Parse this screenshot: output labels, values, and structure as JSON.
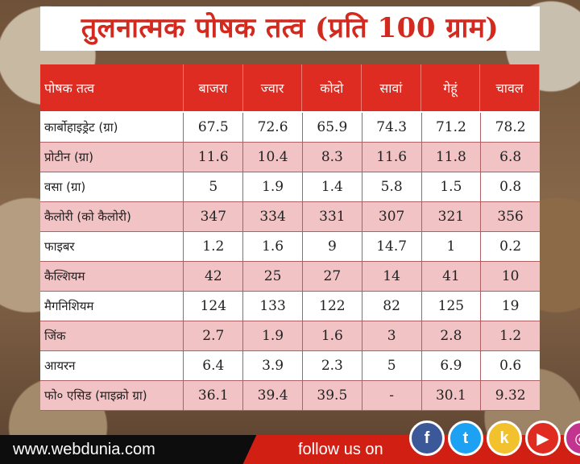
{
  "title": "तुलनात्मक पोषक तत्व (प्रति 100 ग्राम)",
  "table": {
    "headers": [
      "पोषक तत्व",
      "बाजरा",
      "ज्वार",
      "कोदो",
      "सावां",
      "गेहूं",
      "चावल"
    ],
    "rows": [
      {
        "name": "कार्बोहाइड्रेट (ग्रा)",
        "values": [
          "67.5",
          "72.6",
          "65.9",
          "74.3",
          "71.2",
          "78.2"
        ]
      },
      {
        "name": "प्रोटीन (ग्रा)",
        "values": [
          "11.6",
          "10.4",
          "8.3",
          "11.6",
          "11.8",
          "6.8"
        ]
      },
      {
        "name": "वसा (ग्रा)",
        "values": [
          "5",
          "1.9",
          "1.4",
          "5.8",
          "1.5",
          "0.8"
        ]
      },
      {
        "name": "कैलोरी (को कैलोरी)",
        "values": [
          "347",
          "334",
          "331",
          "307",
          "321",
          "356"
        ]
      },
      {
        "name": "फाइबर",
        "values": [
          "1.2",
          "1.6",
          "9",
          "14.7",
          "1",
          "0.2"
        ]
      },
      {
        "name": "कैल्शियम",
        "values": [
          "42",
          "25",
          "27",
          "14",
          "41",
          "10"
        ]
      },
      {
        "name": "मैगनिशियम",
        "values": [
          "124",
          "133",
          "122",
          "82",
          "125",
          "19"
        ]
      },
      {
        "name": "जिंक",
        "values": [
          "2.7",
          "1.9",
          "1.6",
          "3",
          "2.8",
          "1.2"
        ]
      },
      {
        "name": "आयरन",
        "values": [
          "6.4",
          "3.9",
          "2.3",
          "5",
          "6.9",
          "0.6"
        ]
      },
      {
        "name": "फो० एसिड (माइक्रो ग्रा)",
        "values": [
          "36.1",
          "39.4",
          "39.5",
          "-",
          "30.1",
          "9.32"
        ]
      }
    ]
  },
  "footer": {
    "site": "www.webdunia.com",
    "follow": "follow us on",
    "icons": [
      {
        "name": "facebook-icon",
        "glyph": "f",
        "color": "#3b5998"
      },
      {
        "name": "twitter-icon",
        "glyph": "t",
        "color": "#1da1f2"
      },
      {
        "name": "kooapp-icon",
        "glyph": "k",
        "color": "#f2c12e"
      },
      {
        "name": "youtube-icon",
        "glyph": "▶",
        "color": "#e02b20"
      },
      {
        "name": "instagram-icon",
        "glyph": "◎",
        "color": "#c1358f"
      }
    ]
  },
  "colors": {
    "accent": "#df2c22",
    "row_alt": "#f2c3c5",
    "title_text": "#d22a1e"
  }
}
